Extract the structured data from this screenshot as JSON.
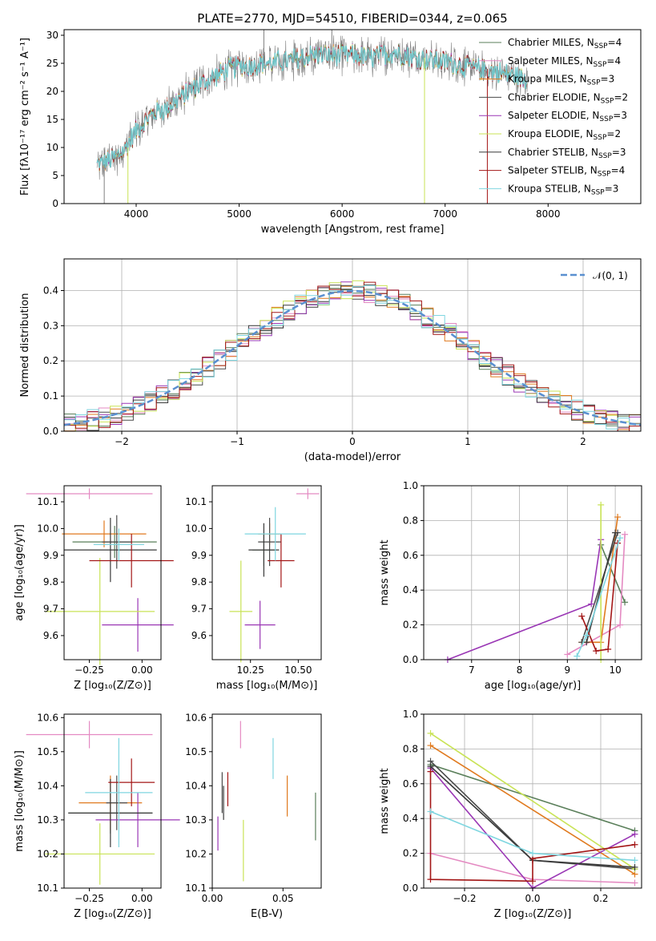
{
  "title": "PLATE=2770, MJD=54510, FIBERID=0344, z=0.065",
  "colors": {
    "series": [
      "#5a7f5a",
      "#e48ac2",
      "#e07a1f",
      "#4a4a4a",
      "#9a37b5",
      "#c9e356",
      "#3a3a3a",
      "#a31616",
      "#7fd6e0"
    ],
    "normal_line": "#5a8fd0",
    "spectrum_gray": "#7f7f7f",
    "spectrum_cyan": "#6ed3d8"
  },
  "series_names": [
    "Chabrier MILES",
    "Salpeter MILES",
    "Kroupa MILES",
    "Chabrier ELODIE",
    "Salpeter ELODIE",
    "Kroupa ELODIE",
    "Chabrier STELIB",
    "Salpeter STELIB",
    "Kroupa STELIB"
  ],
  "nssp": [
    4,
    4,
    3,
    2,
    3,
    2,
    3,
    4,
    3
  ],
  "chart_data": [
    {
      "type": "line",
      "id": "spectrum",
      "xlabel": "wavelength [Angstrom, rest frame]",
      "ylabel": "Flux [fλ10⁻¹⁷ erg cm⁻² s⁻¹ A⁻¹]",
      "xlim": [
        3300,
        8900
      ],
      "ylim": [
        0,
        31
      ],
      "xticks": [
        4000,
        5000,
        6000,
        7000,
        8000
      ],
      "yticks": [
        0,
        5,
        10,
        15,
        20,
        25,
        30
      ],
      "continuum": [
        [
          3620,
          7
        ],
        [
          3700,
          7.5
        ],
        [
          3800,
          8
        ],
        [
          3900,
          10
        ],
        [
          4000,
          13
        ],
        [
          4100,
          15
        ],
        [
          4200,
          16.5
        ],
        [
          4300,
          17
        ],
        [
          4400,
          18.5
        ],
        [
          4500,
          20
        ],
        [
          4600,
          21
        ],
        [
          4700,
          22
        ],
        [
          4800,
          23
        ],
        [
          4900,
          24
        ],
        [
          5000,
          24.5
        ],
        [
          5100,
          24.5
        ],
        [
          5200,
          25
        ],
        [
          5300,
          25
        ],
        [
          5500,
          25.5
        ],
        [
          5700,
          26.5
        ],
        [
          5900,
          26.5
        ],
        [
          6100,
          26.5
        ],
        [
          6300,
          26
        ],
        [
          6500,
          27
        ],
        [
          6700,
          26
        ],
        [
          6900,
          25.5
        ],
        [
          7100,
          25
        ],
        [
          7300,
          24
        ],
        [
          7500,
          23.5
        ],
        [
          7700,
          22.5
        ],
        [
          7800,
          22
        ]
      ],
      "legend": "upper right"
    },
    {
      "type": "line",
      "id": "residuals",
      "xlabel": "(data-model)/error",
      "ylabel": "Normed distribution",
      "xlim": [
        -2.5,
        2.5
      ],
      "ylim": [
        0,
        0.49
      ],
      "xticks": [
        -2,
        -1,
        0,
        1,
        2
      ],
      "yticks": [
        0.0,
        0.1,
        0.2,
        0.3,
        0.4
      ],
      "legend_label": "𝒩(0, 1)",
      "grid": true
    },
    {
      "type": "scatter",
      "id": "age_vs_Z",
      "xlabel": "Z [log₁₀(Z/Z⊙)]",
      "ylabel": "age  [log₁₀(age/yr)]",
      "xlim": [
        -0.37,
        0.09
      ],
      "ylim": [
        9.51,
        10.16
      ],
      "xticks": [
        -0.25,
        0.0
      ],
      "xtick_labels": [
        "−0.25",
        "0.00"
      ],
      "yticks": [
        9.6,
        9.7,
        9.8,
        9.9,
        10.0,
        10.1
      ],
      "points": [
        {
          "x": -0.13,
          "y": 9.95,
          "xerr": 0.2,
          "yerr": 0.06
        },
        {
          "x": -0.25,
          "y": 10.13,
          "xerr": 0.3,
          "yerr": 0.02
        },
        {
          "x": -0.18,
          "y": 9.98,
          "xerr": 0.2,
          "yerr": 0.05
        },
        {
          "x": -0.12,
          "y": 9.95,
          "xerr": 0.07,
          "yerr": 0.1
        },
        {
          "x": -0.02,
          "y": 9.64,
          "xerr": 0.17,
          "yerr": 0.1
        },
        {
          "x": -0.2,
          "y": 9.69,
          "xerr": 0.26,
          "yerr": 0.2
        },
        {
          "x": -0.15,
          "y": 9.92,
          "xerr": 0.22,
          "yerr": 0.12
        },
        {
          "x": -0.05,
          "y": 9.88,
          "xerr": 0.2,
          "yerr": 0.1
        },
        {
          "x": -0.11,
          "y": 9.94,
          "xerr": 0.12,
          "yerr": 0.06
        }
      ]
    },
    {
      "type": "scatter",
      "id": "age_vs_mass",
      "xlabel": "mass [log₁₀(M/M⊙)]",
      "xlim": [
        10.05,
        10.62
      ],
      "ylim": [
        9.51,
        10.16
      ],
      "xticks": [
        10.25,
        10.5
      ],
      "xtick_labels": [
        "10.25",
        "10.50"
      ],
      "yticks": [
        9.6,
        9.7,
        9.8,
        9.9,
        10.0,
        10.1
      ],
      "points": [
        {
          "x": 10.32,
          "y": 9.92,
          "xerr": 0.06,
          "yerr": 0.06
        },
        {
          "x": 10.55,
          "y": 10.13,
          "xerr": 0.06,
          "yerr": 0.02
        },
        {
          "x": 10.35,
          "y": 9.98,
          "xerr": 0.06,
          "yerr": 0.04
        },
        {
          "x": 10.35,
          "y": 9.95,
          "xerr": 0.06,
          "yerr": 0.09
        },
        {
          "x": 10.3,
          "y": 9.64,
          "xerr": 0.08,
          "yerr": 0.09
        },
        {
          "x": 10.2,
          "y": 9.69,
          "xerr": 0.06,
          "yerr": 0.19
        },
        {
          "x": 10.32,
          "y": 9.92,
          "xerr": 0.08,
          "yerr": 0.1
        },
        {
          "x": 10.41,
          "y": 9.88,
          "xerr": 0.07,
          "yerr": 0.1
        },
        {
          "x": 10.38,
          "y": 9.98,
          "xerr": 0.16,
          "yerr": 0.1
        }
      ]
    },
    {
      "type": "line",
      "id": "weight_vs_age",
      "xlabel": "age  [log₁₀(age/yr)]",
      "ylabel": "mass weight",
      "xlim": [
        6.0,
        10.55
      ],
      "ylim": [
        0.0,
        1.0
      ],
      "xticks": [
        7,
        8,
        9,
        10
      ],
      "yticks": [
        0.0,
        0.2,
        0.4,
        0.6,
        0.8,
        1.0
      ],
      "grid": true,
      "series": [
        {
          "x": [
            9.7,
            10.2
          ],
          "y": [
            0.66,
            0.33
          ]
        },
        {
          "x": [
            9.0,
            10.1,
            10.2
          ],
          "y": [
            0.03,
            0.2,
            0.72
          ]
        },
        {
          "x": [
            9.3,
            9.7,
            10.05
          ],
          "y": [
            0.1,
            0.1,
            0.82
          ]
        },
        {
          "x": [
            9.3,
            10.05
          ],
          "y": [
            0.1,
            0.73
          ]
        },
        {
          "x": [
            6.5,
            9.5,
            9.7
          ],
          "y": [
            0.0,
            0.32,
            0.69
          ]
        },
        {
          "x": [
            9.7,
            9.7
          ],
          "y": [
            0.0,
            0.89
          ]
        },
        {
          "x": [
            9.4,
            10.0
          ],
          "y": [
            0.1,
            0.73
          ]
        },
        {
          "x": [
            9.3,
            9.6,
            9.85,
            10.05
          ],
          "y": [
            0.25,
            0.05,
            0.06,
            0.67
          ]
        },
        {
          "x": [
            9.2,
            9.4,
            10.1
          ],
          "y": [
            0.02,
            0.14,
            0.7
          ]
        }
      ]
    },
    {
      "type": "scatter",
      "id": "mass_vs_Z",
      "xlabel": "Z [log₁₀(Z/Z⊙)]",
      "ylabel": "mass [log₁₀(M/M⊙)]",
      "xlim": [
        -0.37,
        0.09
      ],
      "ylim": [
        10.1,
        10.61
      ],
      "xticks": [
        -0.25,
        0.0
      ],
      "xtick_labels": [
        "−0.25",
        "0.00"
      ],
      "yticks": [
        10.1,
        10.2,
        10.3,
        10.4,
        10.5,
        10.6
      ],
      "points": [
        {
          "x": -0.15,
          "y": 10.32,
          "xerr": 0.2,
          "yerr": 0.06
        },
        {
          "x": -0.25,
          "y": 10.55,
          "xerr": 0.3,
          "yerr": 0.04
        },
        {
          "x": -0.15,
          "y": 10.35,
          "xerr": 0.15,
          "yerr": 0.08
        },
        {
          "x": -0.12,
          "y": 10.35,
          "xerr": 0.05,
          "yerr": 0.08
        },
        {
          "x": -0.02,
          "y": 10.3,
          "xerr": 0.2,
          "yerr": 0.08
        },
        {
          "x": -0.2,
          "y": 10.2,
          "xerr": 0.26,
          "yerr": 0.09
        },
        {
          "x": -0.15,
          "y": 10.32,
          "xerr": 0.2,
          "yerr": 0.1
        },
        {
          "x": -0.05,
          "y": 10.41,
          "xerr": 0.11,
          "yerr": 0.07
        },
        {
          "x": -0.11,
          "y": 10.38,
          "xerr": 0.16,
          "yerr": 0.16
        }
      ]
    },
    {
      "type": "scatter",
      "id": "mass_vs_ebv",
      "xlabel": "E(B-V)",
      "xlim": [
        0.0,
        0.077
      ],
      "ylim": [
        10.1,
        10.61
      ],
      "xticks": [
        0.0,
        0.05
      ],
      "xtick_labels": [
        "0.00",
        "0.05"
      ],
      "yticks": [
        10.1,
        10.2,
        10.3,
        10.4,
        10.5,
        10.6
      ],
      "points": [
        {
          "x": 0.073,
          "y": 10.31,
          "yerr": 0.07
        },
        {
          "x": 0.02,
          "y": 10.55,
          "yerr": 0.04
        },
        {
          "x": 0.053,
          "y": 10.37,
          "yerr": 0.06
        },
        {
          "x": 0.007,
          "y": 10.38,
          "yerr": 0.06
        },
        {
          "x": 0.004,
          "y": 10.26,
          "yerr": 0.05
        },
        {
          "x": 0.022,
          "y": 10.21,
          "yerr": 0.09
        },
        {
          "x": 0.008,
          "y": 10.35,
          "yerr": 0.05
        },
        {
          "x": 0.011,
          "y": 10.39,
          "yerr": 0.05
        },
        {
          "x": 0.043,
          "y": 10.48,
          "yerr": 0.06
        }
      ]
    },
    {
      "type": "line",
      "id": "weight_vs_Z",
      "xlabel": "Z [log₁₀(Z/Z⊙)]",
      "ylabel": "mass weight",
      "xlim": [
        -0.32,
        0.32
      ],
      "ylim": [
        0.0,
        1.0
      ],
      "xticks": [
        -0.2,
        0.0,
        0.2
      ],
      "xtick_labels": [
        "−0.2",
        "0.0",
        "0.2"
      ],
      "yticks": [
        0.0,
        0.2,
        0.4,
        0.6,
        0.8,
        1.0
      ],
      "grid": true,
      "series": [
        {
          "x": [
            -0.3,
            0.3
          ],
          "y": [
            0.71,
            0.33
          ]
        },
        {
          "x": [
            -0.3,
            0.0,
            0.3
          ],
          "y": [
            0.2,
            0.05,
            0.03
          ]
        },
        {
          "x": [
            -0.3,
            0.3
          ],
          "y": [
            0.82,
            0.08
          ]
        },
        {
          "x": [
            -0.3,
            0.0,
            0.3
          ],
          "y": [
            0.73,
            0.16,
            0.11
          ]
        },
        {
          "x": [
            -0.3,
            0.0,
            0.3
          ],
          "y": [
            0.69,
            0.0,
            0.31
          ]
        },
        {
          "x": [
            -0.3,
            0.3
          ],
          "y": [
            0.89,
            0.11
          ]
        },
        {
          "x": [
            -0.3,
            0.0,
            0.3
          ],
          "y": [
            0.7,
            0.16,
            0.12
          ]
        },
        {
          "x": [
            -0.3,
            -0.3,
            0.0,
            0.0,
            0.3
          ],
          "y": [
            0.67,
            0.05,
            0.04,
            0.17,
            0.25
          ]
        },
        {
          "x": [
            -0.3,
            0.0,
            0.3
          ],
          "y": [
            0.44,
            0.2,
            0.16
          ]
        }
      ]
    }
  ]
}
